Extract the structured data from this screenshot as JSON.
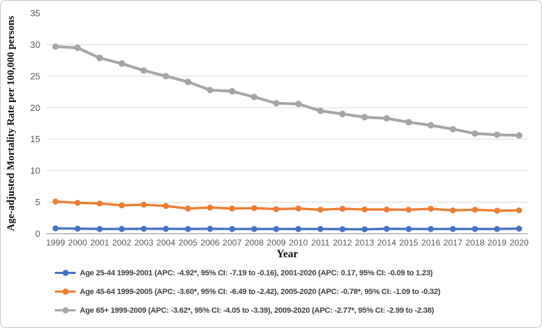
{
  "chart_data": {
    "type": "line",
    "title": "",
    "xlabel": "Year",
    "ylabel": "Age-adjusted Mortality Rate per 100,000 persons",
    "ylim": [
      0,
      35
    ],
    "yticks": [
      0,
      5,
      10,
      15,
      20,
      25,
      30,
      35
    ],
    "grid": true,
    "legend_position": "bottom",
    "tick_label_color": "#595959",
    "gridline_color": "#dcdcdc",
    "axis_line_color": "#9c9c9c",
    "x": [
      1999,
      2000,
      2001,
      2002,
      2003,
      2004,
      2005,
      2006,
      2007,
      2008,
      2009,
      2010,
      2011,
      2012,
      2013,
      2014,
      2015,
      2016,
      2017,
      2018,
      2019,
      2020
    ],
    "series": [
      {
        "name": "Age 25-44",
        "color": "#4472C4",
        "legend": "Age 25-44 1999-2001 (APC: -4.92*, 95% CI: -7.19 to -0.16), 2001-2020 (APC: 0.17, 95% CI: -0.09 to 1.23)",
        "values": [
          0.85,
          0.8,
          0.75,
          0.75,
          0.78,
          0.78,
          0.75,
          0.78,
          0.75,
          0.75,
          0.75,
          0.75,
          0.75,
          0.72,
          0.7,
          0.78,
          0.75,
          0.75,
          0.75,
          0.75,
          0.75,
          0.8
        ]
      },
      {
        "name": "Age 45-64",
        "color": "#ED7D31",
        "legend": "Age 45-64 1999-2005 (APC: -3.60*, 95% CI: -6.49 to -2.42), 2005-2020 (APC: -0.78*, 95% CI: -1.09 to -0.32)",
        "values": [
          5.1,
          4.9,
          4.8,
          4.5,
          4.6,
          4.4,
          4.0,
          4.15,
          4.0,
          4.05,
          3.9,
          4.0,
          3.8,
          3.95,
          3.85,
          3.85,
          3.8,
          3.95,
          3.7,
          3.8,
          3.65,
          3.7
        ]
      },
      {
        "name": "Age 65+",
        "color": "#A5A5A5",
        "legend": "Age 65+ 1999-2009 (APC: -3.62*, 95% CI: -4.05 to -3.39), 2009-2020 (APC: -2.77*, 95% CI: -2.99 to -2.38)",
        "values": [
          29.7,
          29.5,
          27.9,
          27.0,
          25.9,
          25.0,
          24.1,
          22.8,
          22.6,
          21.7,
          20.7,
          20.6,
          19.5,
          19.0,
          18.5,
          18.3,
          17.7,
          17.2,
          16.6,
          15.9,
          15.7,
          15.6
        ]
      }
    ]
  }
}
